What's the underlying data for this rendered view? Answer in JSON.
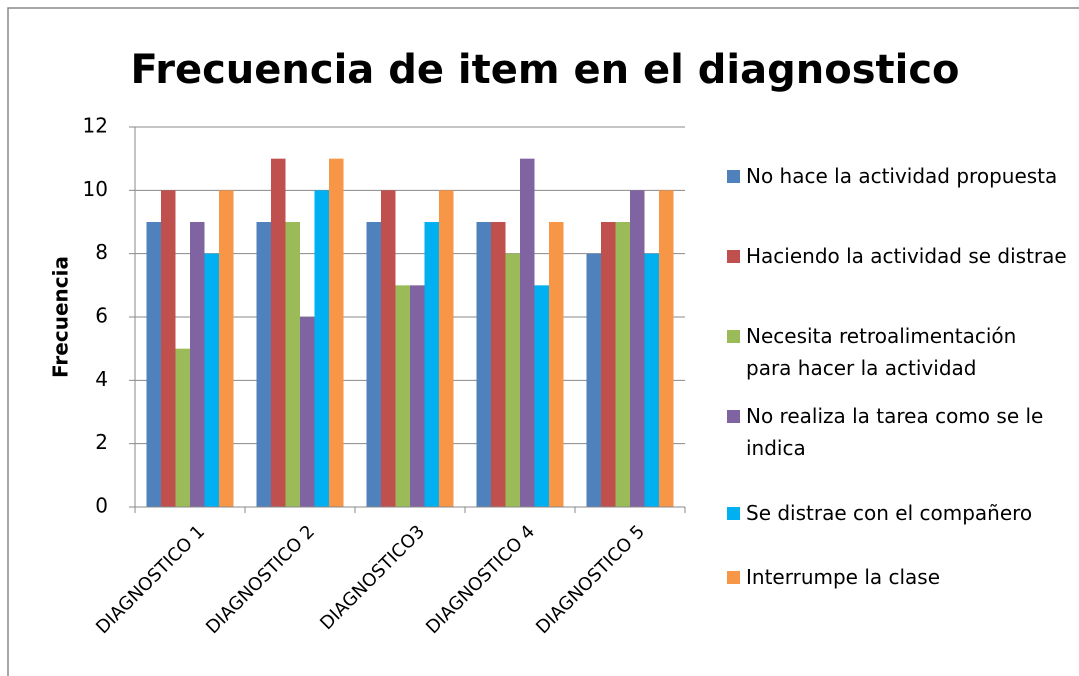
{
  "chart_data": {
    "type": "bar",
    "title": "Frecuencia de item en el diagnostico",
    "y_label": "Frecuencia",
    "categories": [
      "DIAGNOSTICO 1",
      "DIAGNOSTICO 2",
      "DIAGNOSTICO3",
      "DIAGNOSTICO 4",
      "DIAGNOSTICO 5"
    ],
    "series": [
      {
        "name": "No hace la actividad propuesta",
        "color": "#4f81bd",
        "values": [
          9,
          9,
          9,
          9,
          8
        ]
      },
      {
        "name": "Haciendo la actividad se distrae",
        "color": "#c0504d",
        "values": [
          10,
          11,
          10,
          9,
          9
        ]
      },
      {
        "name": "Necesita retroalimentación para hacer la actividad",
        "color": "#9bbb59",
        "values": [
          5,
          9,
          7,
          8,
          9
        ]
      },
      {
        "name": "No realiza la tarea como se le indica",
        "color": "#8064a2",
        "values": [
          9,
          6,
          7,
          11,
          10
        ]
      },
      {
        "name": "Se distrae con el compañero",
        "color": "#00b0f0",
        "values": [
          8,
          10,
          9,
          7,
          8
        ]
      },
      {
        "name": "Interrumpe la clase",
        "color": "#f79646",
        "values": [
          10,
          11,
          10,
          9,
          10
        ]
      }
    ],
    "ylim": [
      0,
      12
    ],
    "yticks": [
      0,
      2,
      4,
      6,
      8,
      10,
      12
    ],
    "grid": true,
    "legend": "right"
  }
}
